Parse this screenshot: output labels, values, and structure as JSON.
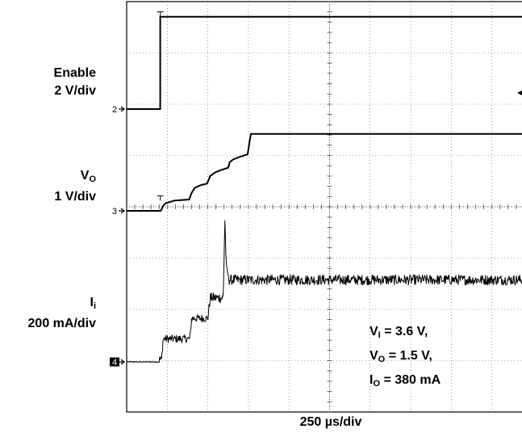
{
  "chart_data": {
    "type": "line",
    "title": "",
    "xlabel": "250 µs/div",
    "x_units": "µs",
    "x_range": [
      -625,
      1875
    ],
    "grid": true,
    "divisions": {
      "x": 10,
      "y": 8
    },
    "series": [
      {
        "label": "Enable",
        "scale": "2 V/div",
        "marker": "2",
        "units": "V",
        "points": [
          [
            -625,
            0
          ],
          [
            -418,
            0
          ],
          [
            -418,
            3.6
          ],
          [
            1875,
            3.6
          ]
        ]
      },
      {
        "label": "V",
        "label_sub": "O",
        "scale": "1 V/div",
        "marker": "3",
        "units": "V",
        "points": [
          [
            -625,
            0
          ],
          [
            -415,
            0
          ],
          [
            -400,
            0.1
          ],
          [
            -385,
            0.15
          ],
          [
            -330,
            0.2
          ],
          [
            -240,
            0.22
          ],
          [
            -225,
            0.35
          ],
          [
            -205,
            0.45
          ],
          [
            -170,
            0.5
          ],
          [
            -130,
            0.53
          ],
          [
            -110,
            0.68
          ],
          [
            -80,
            0.75
          ],
          [
            -40,
            0.8
          ],
          [
            0,
            0.84
          ],
          [
            10,
            0.95
          ],
          [
            30,
            1.0
          ],
          [
            70,
            1.05
          ],
          [
            120,
            1.1
          ],
          [
            140,
            1.5
          ],
          [
            1875,
            1.5
          ]
        ]
      },
      {
        "label": "I",
        "label_sub": "i",
        "scale": "200 mA/div",
        "marker": "4",
        "units": "mA",
        "noise_mA": [
          4,
          30,
          30,
          40,
          45,
          40
        ],
        "points": [
          [
            -625,
            0
          ],
          [
            -430,
            0
          ],
          [
            -423,
            10
          ],
          [
            -410,
            10
          ],
          [
            -400,
            90
          ],
          [
            -235,
            90
          ],
          [
            -225,
            170
          ],
          [
            -125,
            170
          ],
          [
            -110,
            250
          ],
          [
            -30,
            250
          ],
          [
            -20,
            560
          ],
          [
            -12,
            380
          ],
          [
            5,
            320
          ],
          [
            1875,
            320
          ]
        ]
      }
    ],
    "annotations": [
      "V",
      "I",
      "= 3.6 V,",
      "O",
      "= 1.5 V,",
      "O",
      "= 380 mA"
    ]
  }
}
